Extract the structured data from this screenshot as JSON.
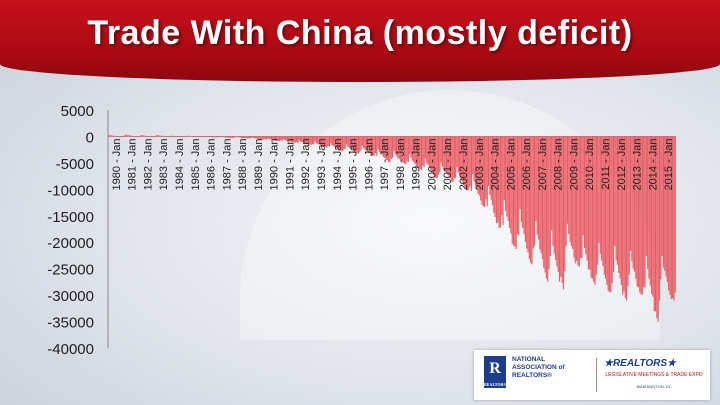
{
  "header": {
    "title": "Trade With China (mostly deficit)"
  },
  "footer": {
    "nar_line1": "NATIONAL",
    "nar_line2": "ASSOCIATION of",
    "nar_line3": "REALTORS®",
    "logo_letter": "R",
    "logo_sub": "REALTOR®",
    "realtors_mark": "★REALTORS★",
    "event_line1": "LEGISLATIVE MEETINGS & TRADE EXPO",
    "event_line2": "WASHINGTON, DC"
  },
  "chart_data": {
    "type": "bar",
    "title": "",
    "xlabel": "",
    "ylabel": "",
    "ylim": [
      -40000,
      5000
    ],
    "yticks": [
      5000,
      0,
      -5000,
      -10000,
      -15000,
      -20000,
      -25000,
      -30000,
      -35000,
      -40000
    ],
    "categories": [
      "1980 - Jan",
      "1981 - Jan",
      "1982 - Jan",
      "1983 - Jan",
      "1984 - Jan",
      "1985 - Jan",
      "1986 - Jan",
      "1987 - Jan",
      "1988 - Jan",
      "1989 - Jan",
      "1990 - Jan",
      "1991 - Jan",
      "1992 - Jan",
      "1993 - Jan",
      "1994 - Jan",
      "1995 - Jan",
      "1996 - Jan",
      "1997 - Jan",
      "1998 - Jan",
      "1999 - Jan",
      "2000 - Jan",
      "2001 - Jan",
      "2002 - Jan",
      "2003 - Jan",
      "2004 - Jan",
      "2005 - Jan",
      "2006 - Jan",
      "2007 - Jan",
      "2008 - Jan",
      "2009 - Jan",
      "2010 - Jan",
      "2011 - Jan",
      "2012 - Jan",
      "2013 - Jan",
      "2014 - Jan",
      "2015 - Jan"
    ],
    "series": [
      {
        "color": "#e8474f",
        "annual_min": [
          0,
          0,
          0,
          0,
          -100,
          -100,
          -200,
          -300,
          -400,
          -600,
          -900,
          -1200,
          -1700,
          -2100,
          -2800,
          -3300,
          -3800,
          -4900,
          -5400,
          -6500,
          -8200,
          -8700,
          -10500,
          -13500,
          -17500,
          -21500,
          -24500,
          -27500,
          -29000,
          -25500,
          -29000,
          -30000,
          -31500,
          -31000,
          -35000,
          -31500
        ],
        "annual_max": [
          300,
          400,
          300,
          300,
          200,
          200,
          100,
          0,
          0,
          -100,
          -300,
          -400,
          -600,
          -800,
          -1000,
          -1200,
          -1400,
          -2000,
          -2300,
          -2900,
          -3400,
          -4200,
          -5000,
          -6000,
          -8000,
          -10500,
          -12000,
          -14000,
          -16000,
          -15000,
          -17000,
          -18500,
          -19000,
          -20000,
          -20500,
          -21000
        ]
      }
    ]
  }
}
